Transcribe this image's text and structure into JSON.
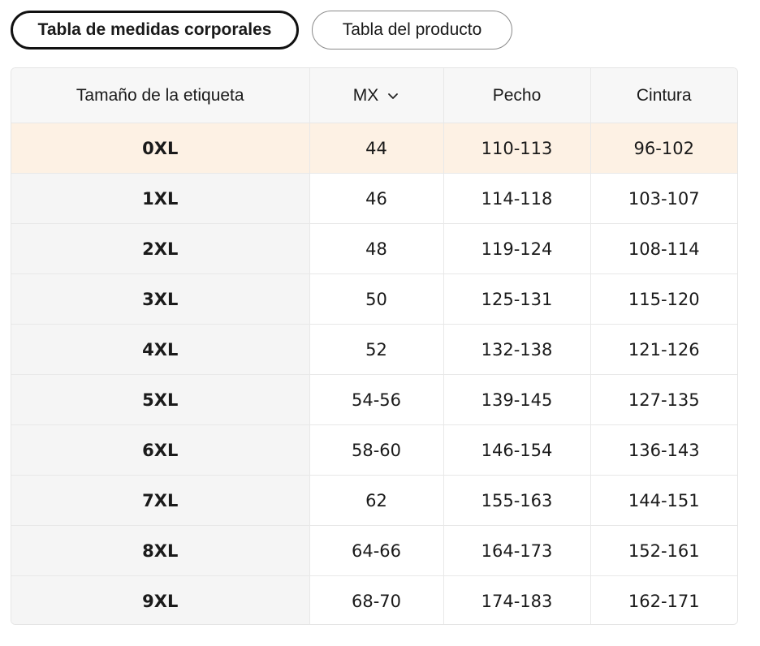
{
  "tabs": [
    {
      "label": "Tabla de medidas corporales",
      "active": true
    },
    {
      "label": "Tabla del producto",
      "active": false
    }
  ],
  "table": {
    "headers": {
      "size": "Tamaño de la etiqueta",
      "region": "MX",
      "region_icon": "chevron-down-icon",
      "chest": "Pecho",
      "waist": "Cintura"
    },
    "highlight_color": "#fdf1e4",
    "rows": [
      {
        "size": "0XL",
        "mx": "44",
        "chest": "110-113",
        "waist": "96-102"
      },
      {
        "size": "1XL",
        "mx": "46",
        "chest": "114-118",
        "waist": "103-107"
      },
      {
        "size": "2XL",
        "mx": "48",
        "chest": "119-124",
        "waist": "108-114"
      },
      {
        "size": "3XL",
        "mx": "50",
        "chest": "125-131",
        "waist": "115-120"
      },
      {
        "size": "4XL",
        "mx": "52",
        "chest": "132-138",
        "waist": "121-126"
      },
      {
        "size": "5XL",
        "mx": "54-56",
        "chest": "139-145",
        "waist": "127-135"
      },
      {
        "size": "6XL",
        "mx": "58-60",
        "chest": "146-154",
        "waist": "136-143"
      },
      {
        "size": "7XL",
        "mx": "62",
        "chest": "155-163",
        "waist": "144-151"
      },
      {
        "size": "8XL",
        "mx": "64-66",
        "chest": "164-173",
        "waist": "152-161"
      },
      {
        "size": "9XL",
        "mx": "68-70",
        "chest": "174-183",
        "waist": "162-171"
      }
    ]
  }
}
